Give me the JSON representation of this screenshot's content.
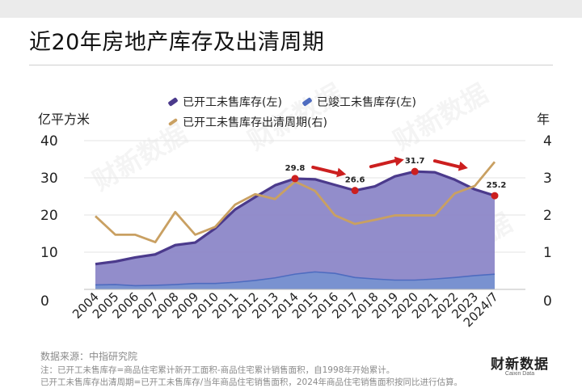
{
  "title": "近20年房地产库存及出清周期",
  "left_unit": "亿平方米",
  "right_unit": "年",
  "legend": {
    "s1": "已开工未售库存(左)",
    "s2": "已竣工未售库存(左)",
    "s3": "已开工未售库存出清周期(右)"
  },
  "source": "数据来源：中指研究院",
  "note1": "注：已开工未售库存=商品住宅累计新开工面积-商品住宅累计销售面积，自1998年开始累计。",
  "note2": "已开工未售库存出清周期=已开工未售库存/当年商品住宅销售面积，2024年商品住宅销售面积按同比进行估算。",
  "logo": {
    "main": "财新数据",
    "sub": "Caixin Data"
  },
  "watermark_text": "财新数据",
  "colors": {
    "started_fill": "#8c87c8",
    "started_line": "#4b3a8c",
    "completed_fill": "#7892d0",
    "completed_line": "#4e6cc0",
    "cycle_line": "#c9a062",
    "marker": "#cc1f1f",
    "arrow": "#cc1f1f",
    "grid": "#e3e3e3"
  },
  "chart_data": {
    "type": "area",
    "categories": [
      "2004",
      "2005",
      "2006",
      "2007",
      "2008",
      "2009",
      "2010",
      "2011",
      "2012",
      "2013",
      "2014",
      "2015",
      "2016",
      "2017",
      "2018",
      "2019",
      "2020",
      "2021",
      "2022",
      "2023",
      "2024/7"
    ],
    "y_left": {
      "ticks": [
        "0",
        "10",
        "20",
        "30",
        "40"
      ],
      "range": [
        0,
        40
      ]
    },
    "y_right": {
      "ticks": [
        "0",
        "1",
        "2",
        "3",
        "4"
      ],
      "range": [
        0,
        4
      ]
    },
    "grid": true,
    "legend_position": "top",
    "series": [
      {
        "name": "已开工未售库存(左)",
        "axis": "left",
        "kind": "area",
        "values": [
          6.8,
          7.5,
          8.6,
          9.4,
          11.9,
          12.6,
          16.4,
          21.5,
          24.8,
          28.0,
          29.8,
          29.6,
          28.1,
          26.6,
          27.7,
          30.4,
          31.7,
          31.5,
          29.5,
          26.9,
          25.2
        ]
      },
      {
        "name": "已竣工未售库存(左)",
        "axis": "left",
        "kind": "area",
        "values": [
          1.2,
          1.3,
          1.0,
          1.1,
          1.3,
          1.6,
          1.6,
          1.9,
          2.4,
          3.1,
          4.1,
          4.7,
          4.3,
          3.2,
          2.8,
          2.5,
          2.5,
          2.8,
          3.2,
          3.7,
          4.1
        ]
      },
      {
        "name": "已开工未售库存出清周期(右)",
        "axis": "right",
        "kind": "line",
        "values": [
          1.97,
          1.47,
          1.47,
          1.27,
          2.08,
          1.47,
          1.68,
          2.28,
          2.56,
          2.43,
          2.9,
          2.65,
          1.99,
          1.76,
          1.87,
          1.99,
          1.99,
          1.99,
          2.58,
          2.78,
          3.43
        ]
      }
    ],
    "annotations": [
      {
        "index": 10,
        "label": "29.8"
      },
      {
        "index": 13,
        "label": "26.6"
      },
      {
        "index": 16,
        "label": "31.7"
      },
      {
        "index": 20,
        "label": "25.2"
      }
    ]
  }
}
